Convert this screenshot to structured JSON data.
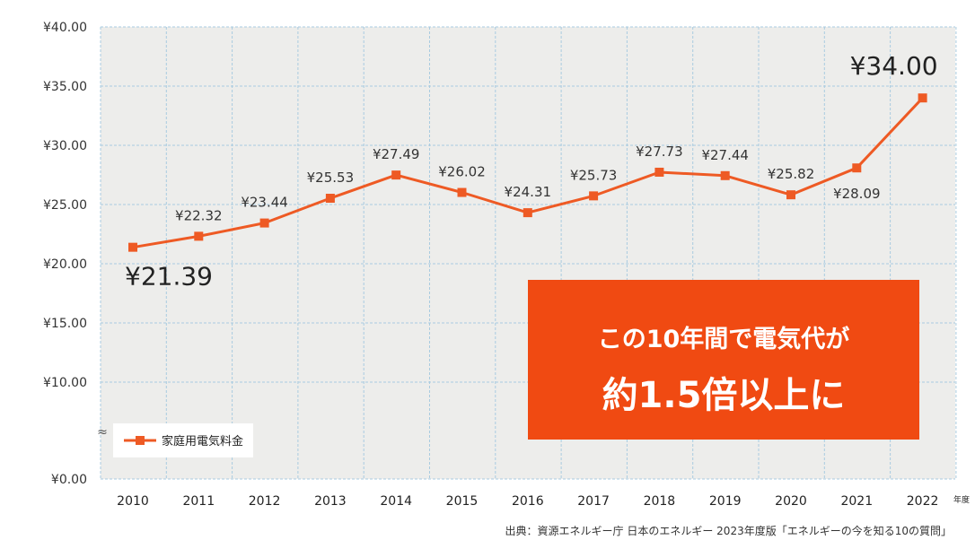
{
  "chart_data": {
    "type": "line",
    "x": [
      "2010",
      "2011",
      "2012",
      "2013",
      "2014",
      "2015",
      "2016",
      "2017",
      "2018",
      "2019",
      "2020",
      "2021",
      "2022"
    ],
    "series": [
      {
        "name": "家庭用電気料金",
        "values": [
          21.39,
          22.32,
          23.44,
          25.53,
          27.49,
          26.02,
          24.31,
          25.73,
          27.73,
          27.44,
          25.82,
          28.09,
          34.0
        ]
      }
    ],
    "data_labels": [
      "¥21.39",
      "¥22.32",
      "¥23.44",
      "¥25.53",
      "¥27.49",
      "¥26.02",
      "¥24.31",
      "¥25.73",
      "¥27.73",
      "¥27.44",
      "¥25.82",
      "¥28.09",
      "¥34.00"
    ],
    "y_ticks": [
      "¥40.00",
      "¥35.00",
      "¥30.00",
      "¥25.00",
      "¥20.00",
      "¥15.00",
      "¥10.00",
      "¥0.00"
    ],
    "y_tick_values": [
      40,
      35,
      30,
      25,
      20,
      15,
      10,
      0
    ],
    "ylim": [
      0,
      40
    ],
    "y_axis_break": "≈",
    "x_unit": "年度",
    "legend": "家庭用電気料金",
    "legend_position": "bottom-left",
    "grid": "vertical",
    "line_color": "#ee5a24",
    "plot_background": "#ededeb",
    "grid_color": "#a9cbe0"
  },
  "callout": {
    "line1": "この10年間で電気代が",
    "line2": "約1.5倍以上に",
    "color": "#f04a12"
  },
  "source": "出典：資源エネルギー庁 日本のエネルギー 2023年度版「エネルギーの今を知る10の質問」"
}
